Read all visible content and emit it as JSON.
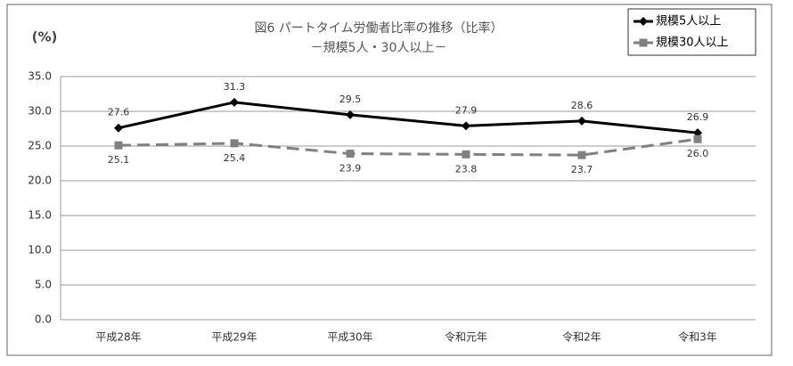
{
  "chart_data": {
    "type": "line",
    "title": "図6 パートタイム労働者比率の推移（比率）",
    "subtitle": "－規模5人・30人以上－",
    "y_label": "(%)",
    "categories": [
      "平成28年",
      "平成29年",
      "平成30年",
      "令和元年",
      "令和2年",
      "令和3年"
    ],
    "series": [
      {
        "name": "規模5人以上",
        "color": "#000000",
        "dashed": false,
        "marker": "diamond",
        "label_position": "above",
        "values": [
          27.6,
          31.3,
          29.5,
          27.9,
          28.6,
          26.9
        ]
      },
      {
        "name": "規模30人以上",
        "color": "#808080",
        "dashed": true,
        "marker": "square",
        "label_position": "below",
        "values": [
          25.1,
          25.4,
          23.9,
          23.8,
          23.7,
          26.0
        ],
        "value_labels": [
          "25.1",
          "25.4",
          "23.9",
          "23.8",
          "23.7",
          "26.0"
        ]
      }
    ],
    "ylim": [
      0,
      35
    ],
    "yticks": [
      {
        "value": 0,
        "label": "0.0"
      },
      {
        "value": 5,
        "label": "5.0"
      },
      {
        "value": 10,
        "label": "10.0"
      },
      {
        "value": 15,
        "label": "15.0"
      },
      {
        "value": 20,
        "label": "20.0"
      },
      {
        "value": 25,
        "label": "25.0"
      },
      {
        "value": 30,
        "label": "30.0"
      },
      {
        "value": 35,
        "label": "35.0"
      }
    ],
    "grid": true,
    "legend": "upper right"
  }
}
